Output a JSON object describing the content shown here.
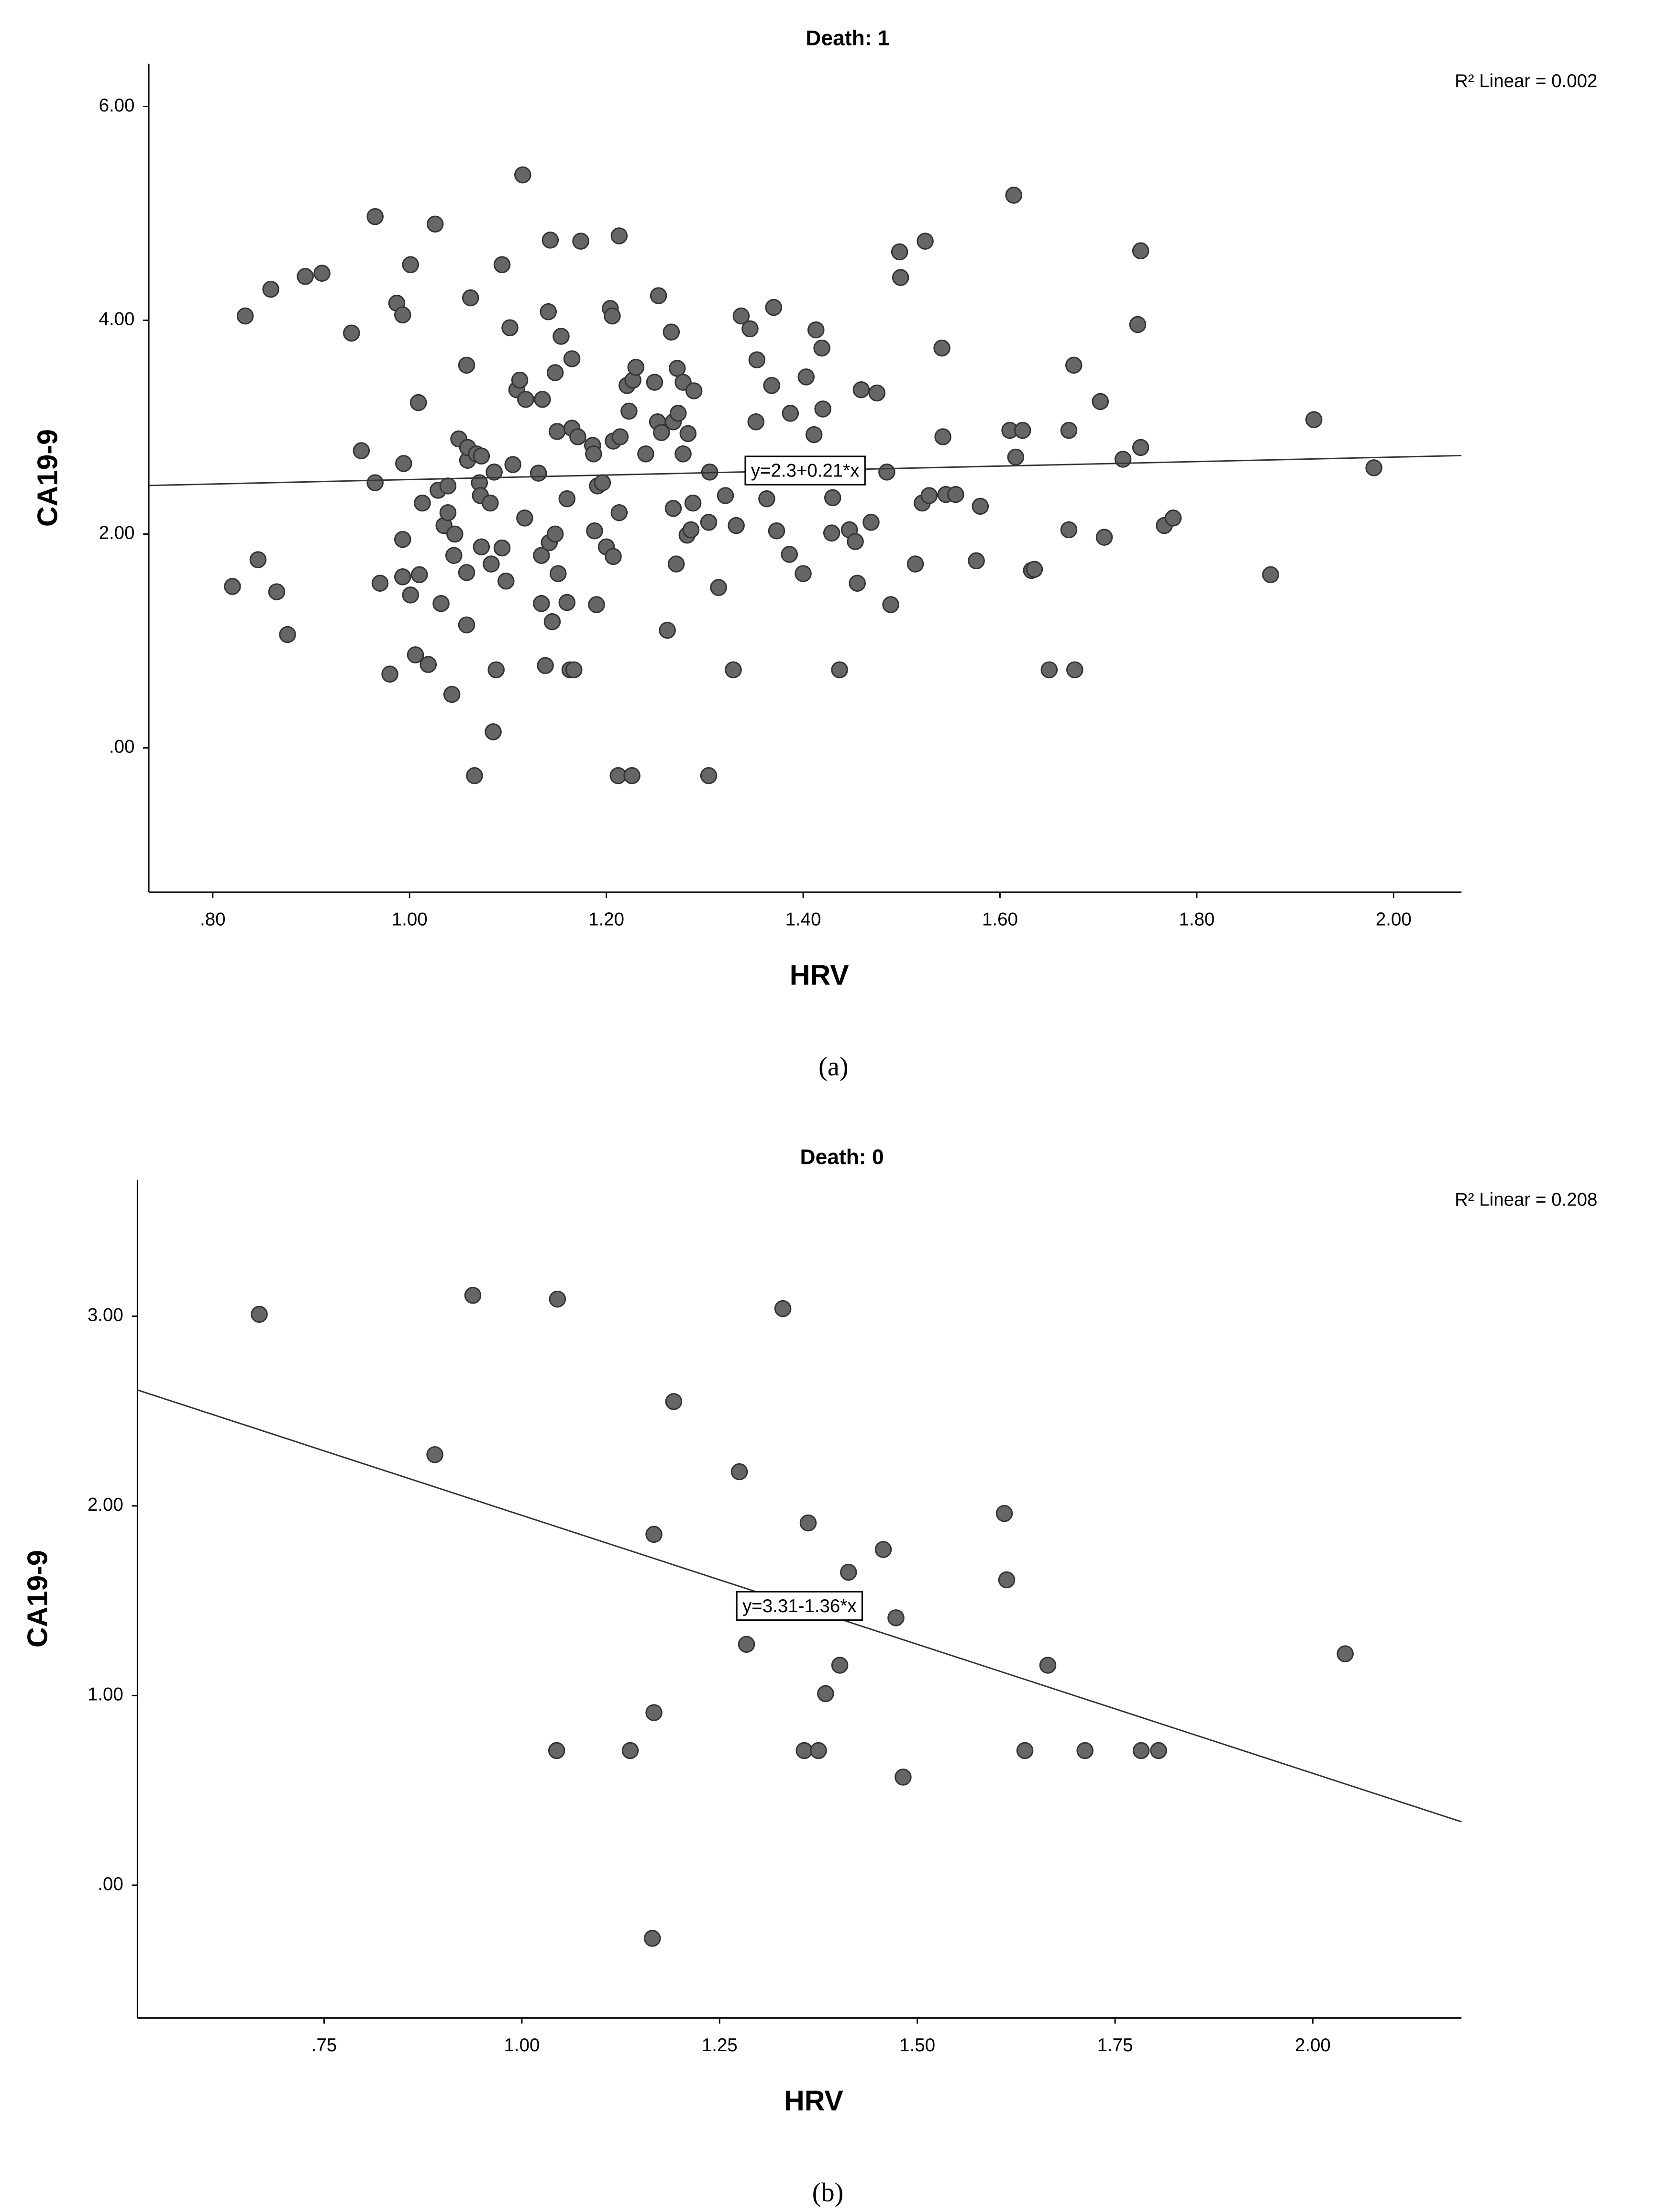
{
  "chart_data": [
    {
      "type": "scatter",
      "title": "Death: 1",
      "x_label": "HRV",
      "y_label": "CA19-9",
      "caption": "(a)",
      "annotation": "R² Linear = 0.002",
      "trendline": {
        "label": "y=2.3+0.21*x",
        "intercept": 2.3,
        "slope": 0.21
      },
      "color": "#666666",
      "xlim": [
        0.735,
        2.069
      ],
      "ylim": [
        -1.35,
        6.4
      ],
      "xticks": [
        {
          "value": 0.8,
          "label": ".80"
        },
        {
          "value": 1.0,
          "label": "1.00"
        },
        {
          "value": 1.2,
          "label": "1.20"
        },
        {
          "value": 1.4,
          "label": "1.40"
        },
        {
          "value": 1.6,
          "label": "1.60"
        },
        {
          "value": 1.8,
          "label": "1.80"
        },
        {
          "value": 2.0,
          "label": "2.00"
        }
      ],
      "yticks": [
        {
          "value": 0,
          "label": ".00"
        },
        {
          "value": 2,
          "label": "2.00"
        },
        {
          "value": 4,
          "label": "4.00"
        },
        {
          "value": 6,
          "label": "6.00"
        }
      ],
      "x": [
        0.82,
        0.833,
        0.846,
        0.859,
        0.865,
        0.876,
        0.894,
        0.911,
        0.941,
        0.951,
        0.965,
        0.965,
        0.97,
        0.98,
        0.987,
        0.993,
        0.993,
        0.993,
        0.994,
        1.001,
        1.001,
        1.006,
        1.009,
        1.01,
        1.013,
        1.019,
        1.026,
        1.029,
        1.032,
        1.035,
        1.039,
        1.039,
        1.043,
        1.045,
        1.046,
        1.05,
        1.058,
        1.058,
        1.058,
        1.059,
        1.059,
        1.062,
        1.066,
        1.068,
        1.071,
        1.072,
        1.073,
        1.073,
        1.082,
        1.083,
        1.085,
        1.086,
        1.088,
        1.094,
        1.094,
        1.098,
        1.102,
        1.105,
        1.109,
        1.112,
        1.115,
        1.118,
        1.117,
        1.131,
        1.134,
        1.134,
        1.135,
        1.138,
        1.141,
        1.142,
        1.143,
        1.145,
        1.148,
        1.148,
        1.15,
        1.151,
        1.154,
        1.16,
        1.16,
        1.163,
        1.167,
        1.165,
        1.165,
        1.174,
        1.171,
        1.186,
        1.187,
        1.188,
        1.19,
        1.191,
        1.196,
        1.2,
        1.204,
        1.206,
        1.207,
        1.207,
        1.212,
        1.213,
        1.213,
        1.214,
        1.221,
        1.223,
        1.226,
        1.227,
        1.23,
        1.24,
        1.249,
        1.252,
        1.253,
        1.256,
        1.262,
        1.266,
        1.268,
        1.268,
        1.271,
        1.272,
        1.273,
        1.278,
        1.278,
        1.282,
        1.283,
        1.286,
        1.288,
        1.289,
        1.304,
        1.304,
        1.305,
        1.314,
        1.321,
        1.329,
        1.332,
        1.337,
        1.346,
        1.352,
        1.353,
        1.363,
        1.368,
        1.37,
        1.373,
        1.386,
        1.387,
        1.4,
        1.403,
        1.411,
        1.413,
        1.419,
        1.42,
        1.43,
        1.429,
        1.437,
        1.447,
        1.453,
        1.455,
        1.459,
        1.469,
        1.475,
        1.485,
        1.489,
        1.498,
        1.499,
        1.514,
        1.521,
        1.524,
        1.528,
        1.541,
        1.542,
        1.545,
        1.555,
        1.576,
        1.58,
        1.61,
        1.614,
        1.616,
        1.623,
        1.632,
        1.635,
        1.65,
        1.67,
        1.67,
        1.675,
        1.676,
        1.702,
        1.706,
        1.725,
        1.74,
        1.743,
        1.743,
        1.767,
        1.776,
        1.875,
        1.919,
        1.98
      ],
      "values": [
        1.51,
        4.04,
        1.76,
        4.29,
        1.46,
        1.06,
        4.41,
        4.44,
        3.88,
        2.78,
        4.97,
        2.48,
        1.54,
        0.69,
        4.16,
        4.05,
        1.95,
        1.6,
        2.66,
        4.52,
        1.43,
        0.87,
        3.23,
        1.62,
        2.29,
        0.78,
        4.9,
        2.41,
        1.35,
        2.08,
        2.45,
        2.2,
        0.5,
        1.8,
        2.0,
        2.89,
        3.58,
        1.15,
        1.64,
        2.69,
        2.81,
        4.21,
        -0.26,
        2.75,
        2.48,
        2.36,
        1.88,
        2.73,
        2.29,
        1.72,
        0.15,
        2.58,
        0.73,
        4.52,
        1.87,
        1.56,
        3.93,
        2.65,
        3.35,
        3.44,
        5.36,
        3.26,
        2.15,
        2.57,
        1.8,
        1.35,
        3.26,
        0.77,
        4.08,
        1.92,
        4.75,
        1.18,
        3.51,
        2.0,
        2.96,
        1.63,
        3.85,
        1.36,
        2.33,
        0.73,
        0.73,
        3.64,
        2.99,
        4.74,
        2.91,
        2.83,
        2.75,
        2.03,
        1.34,
        2.45,
        2.48,
        1.88,
        4.11,
        4.04,
        1.79,
        2.87,
        -0.26,
        4.79,
        2.2,
        2.91,
        3.39,
        3.15,
        -0.26,
        3.44,
        3.56,
        2.75,
        3.42,
        3.05,
        4.23,
        2.95,
        1.1,
        3.89,
        3.05,
        2.24,
        1.72,
        3.55,
        3.13,
        2.75,
        3.42,
        1.99,
        2.94,
        2.04,
        2.29,
        3.34,
        -0.26,
        2.11,
        2.58,
        1.5,
        2.36,
        0.73,
        2.08,
        4.04,
        3.92,
        3.05,
        3.63,
        2.33,
        3.39,
        4.12,
        2.03,
        1.81,
        3.13,
        1.63,
        3.47,
        2.93,
        3.91,
        3.74,
        3.17,
        2.34,
        2.01,
        0.73,
        2.04,
        1.93,
        1.54,
        3.35,
        2.11,
        3.32,
        2.58,
        1.34,
        4.64,
        4.4,
        1.72,
        2.29,
        4.74,
        2.36,
        3.74,
        2.91,
        2.37,
        2.37,
        1.75,
        2.26,
        2.97,
        5.17,
        2.72,
        2.97,
        1.66,
        1.67,
        0.73,
        2.97,
        2.04,
        3.58,
        0.73,
        3.24,
        1.97,
        2.7,
        3.96,
        4.65,
        2.81,
        2.08,
        2.15,
        1.62,
        3.07,
        2.62
      ]
    },
    {
      "type": "scatter",
      "title": "Death: 0",
      "x_label": "HRV",
      "y_label": "CA19-9",
      "caption": "(b)",
      "annotation": "R² Linear = 0.208",
      "trendline": {
        "label": "y=3.31-1.36*x",
        "intercept": 3.31,
        "slope": -1.36
      },
      "color": "#666666",
      "xlim": [
        0.514,
        2.188
      ],
      "ylim": [
        -0.7,
        3.72
      ],
      "xticks": [
        {
          "value": 0.75,
          "label": ".75"
        },
        {
          "value": 1.0,
          "label": "1.00"
        },
        {
          "value": 1.25,
          "label": "1.25"
        },
        {
          "value": 1.5,
          "label": "1.50"
        },
        {
          "value": 1.75,
          "label": "1.75"
        },
        {
          "value": 2.0,
          "label": "2.00"
        }
      ],
      "yticks": [
        {
          "value": 0,
          "label": ".00"
        },
        {
          "value": 1,
          "label": "1.00"
        },
        {
          "value": 2,
          "label": "2.00"
        },
        {
          "value": 3,
          "label": "3.00"
        }
      ],
      "x": [
        0.668,
        0.89,
        0.938,
        1.045,
        1.044,
        1.137,
        1.167,
        1.167,
        1.165,
        1.192,
        1.275,
        1.284,
        1.33,
        1.362,
        1.357,
        1.375,
        1.384,
        1.402,
        1.413,
        1.457,
        1.473,
        1.482,
        1.61,
        1.613,
        1.636,
        1.665,
        1.712,
        1.783,
        1.805,
        2.041
      ],
      "values": [
        3.01,
        2.27,
        3.11,
        3.09,
        0.71,
        0.71,
        1.85,
        0.91,
        -0.28,
        2.55,
        2.18,
        1.27,
        3.04,
        1.91,
        0.71,
        0.71,
        1.01,
        1.16,
        1.65,
        1.77,
        1.41,
        0.57,
        1.96,
        1.61,
        0.71,
        1.16,
        0.71,
        0.71,
        0.71,
        1.22
      ]
    }
  ]
}
